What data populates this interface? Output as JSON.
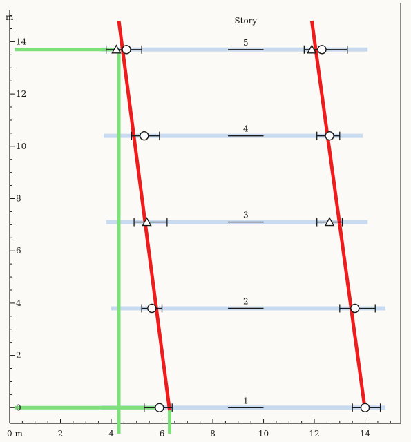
{
  "chart_data": {
    "type": "scatter",
    "title": "",
    "xlabel": "m",
    "ylabel": "m",
    "x_origin_label": "0 m",
    "xlim": [
      0,
      15.4
    ],
    "ylim": [
      -0.6,
      15.2
    ],
    "x_ticks": [
      2,
      4,
      6,
      8,
      10,
      12,
      14
    ],
    "y_ticks": [
      0,
      2,
      4,
      6,
      8,
      10,
      12,
      14
    ],
    "story_header": "Story",
    "stories": [
      {
        "label": "1",
        "y": 0.0,
        "label_x": 9.3,
        "line_x": [
          8.6,
          10.0
        ],
        "band_x": [
          3.6,
          14.8
        ]
      },
      {
        "label": "2",
        "y": 3.8,
        "label_x": 9.3,
        "line_x": [
          8.6,
          10.0
        ],
        "band_x": [
          4.0,
          14.8
        ]
      },
      {
        "label": "3",
        "y": 7.1,
        "label_x": 9.3,
        "line_x": [
          8.6,
          10.0
        ],
        "band_x": [
          3.8,
          14.1
        ]
      },
      {
        "label": "4",
        "y": 10.4,
        "label_x": 9.3,
        "line_x": [
          8.6,
          10.0
        ],
        "band_x": [
          3.7,
          13.9
        ]
      },
      {
        "label": "5",
        "y": 13.7,
        "label_x": 9.3,
        "line_x": [
          8.6,
          10.0
        ],
        "band_x": [
          3.6,
          14.1
        ]
      }
    ],
    "circles": [
      {
        "x": 5.9,
        "y": 0.0,
        "err": [
          5.3,
          6.4
        ]
      },
      {
        "x": 14.0,
        "y": 0.0,
        "err": [
          13.5,
          14.6
        ]
      },
      {
        "x": 5.6,
        "y": 3.8,
        "err": [
          5.2,
          6.0
        ]
      },
      {
        "x": 13.6,
        "y": 3.8,
        "err": [
          13.0,
          14.4
        ]
      },
      {
        "x": 5.3,
        "y": 10.4,
        "err": [
          4.8,
          5.9
        ]
      },
      {
        "x": 12.6,
        "y": 10.4,
        "err": [
          12.1,
          13.0
        ]
      },
      {
        "x": 4.6,
        "y": 13.7,
        "err": [
          3.8,
          5.2
        ]
      },
      {
        "x": 12.3,
        "y": 13.7,
        "err": [
          11.6,
          13.3
        ]
      }
    ],
    "triangles": [
      {
        "x": 5.4,
        "y": 7.1,
        "err": [
          4.9,
          6.2
        ]
      },
      {
        "x": 12.6,
        "y": 7.1,
        "err": [
          12.1,
          13.1
        ]
      },
      {
        "x": 4.2,
        "y": 13.7
      },
      {
        "x": 11.9,
        "y": 13.7
      }
    ],
    "red_lines": [
      {
        "from": [
          4.3,
          14.8
        ],
        "to": [
          6.3,
          -0.1
        ]
      },
      {
        "from": [
          11.9,
          14.8
        ],
        "to": [
          14.0,
          -0.1
        ]
      }
    ],
    "green_lines": [
      {
        "from": [
          0.2,
          13.7
        ],
        "to": [
          4.3,
          13.7
        ]
      },
      {
        "from": [
          4.3,
          13.7
        ],
        "to": [
          4.3,
          -1.0
        ]
      },
      {
        "from": [
          0.2,
          0.0
        ],
        "to": [
          6.0,
          0.0
        ]
      },
      {
        "from": [
          6.3,
          -0.1
        ],
        "to": [
          6.3,
          -1.0
        ]
      }
    ],
    "colors": {
      "red": "#ee1c1c",
      "green": "#7ee07a",
      "band": "#c8daf0",
      "ink": "#1a1a1a"
    }
  }
}
